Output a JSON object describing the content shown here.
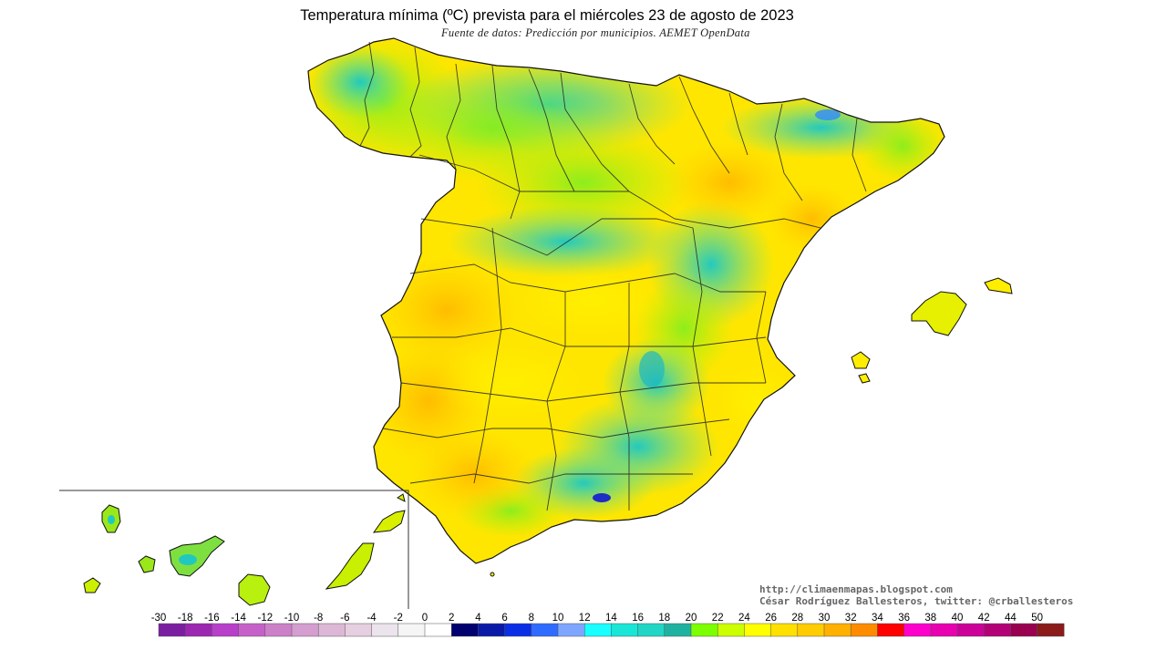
{
  "title": "Temperatura mínima (ºC) prevista para el miércoles 23 de agosto de 2023",
  "subtitle": "Fuente de datos: Predicción por municipios. AEMET OpenData",
  "credits": {
    "url": "http://climaenmapas.blogspot.com",
    "author": "César Rodríguez Ballesteros, twitter: @crballesteros"
  },
  "legend": {
    "unit": "ºC",
    "ticks": [
      "-30",
      "-18",
      "-16",
      "-14",
      "-12",
      "-10",
      "-8",
      "-6",
      "-4",
      "-2",
      "0",
      "2",
      "4",
      "6",
      "8",
      "10",
      "12",
      "14",
      "16",
      "18",
      "20",
      "22",
      "24",
      "26",
      "28",
      "30",
      "32",
      "34",
      "36",
      "38",
      "40",
      "42",
      "44",
      "50"
    ],
    "colors": [
      "#7b1fa2",
      "#9c27b0",
      "#b73fc9",
      "#c660c9",
      "#cc80c8",
      "#d49ed0",
      "#ddb8d6",
      "#e6cfe0",
      "#ece4ec",
      "#f5f5f5",
      "#ffffff",
      "#00006e",
      "#0a1aa8",
      "#0a2ee6",
      "#2f6bff",
      "#7fa6ff",
      "#19ffff",
      "#19e6d6",
      "#21d6c4",
      "#20b2a0",
      "#7cff00",
      "#ccff00",
      "#ffff00",
      "#ffe000",
      "#ffcc00",
      "#ffb000",
      "#ff8c00",
      "#ff0000",
      "#ff00cc",
      "#e800b0",
      "#cc0099",
      "#b30077",
      "#99004f",
      "#8b1a1a"
    ]
  },
  "map": {
    "region": "Spain (peninsula, Balearic Islands, Canary Islands inset)",
    "dominant_colors": {
      "cool": "#20c8c0",
      "mild": "#9ef01a",
      "warm": "#ffee00",
      "warmer": "#ffc400"
    }
  }
}
